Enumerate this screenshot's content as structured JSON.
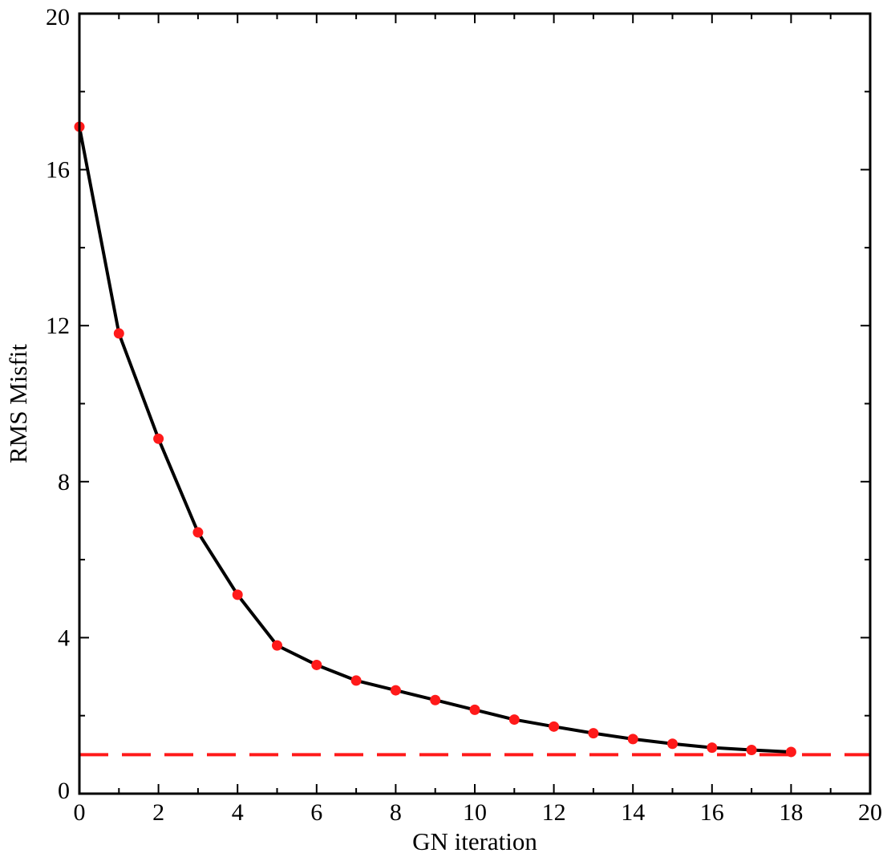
{
  "chart_data": {
    "type": "line",
    "title": "",
    "xlabel": "GN iteration",
    "ylabel": "RMS Misfit",
    "xlim": [
      0,
      20
    ],
    "ylim": [
      0,
      20
    ],
    "xticks": [
      0,
      2,
      4,
      6,
      8,
      10,
      12,
      14,
      16,
      18,
      20
    ],
    "yticks": [
      0,
      4,
      8,
      12,
      16,
      20
    ],
    "grid": false,
    "series": [
      {
        "style": "solid-line-with-markers",
        "line_color": "#000000",
        "marker_color": "#ff1a1a",
        "x": [
          0,
          1,
          2,
          3,
          4,
          5,
          6,
          7,
          8,
          9,
          10,
          11,
          12,
          13,
          14,
          15,
          16,
          17,
          18
        ],
        "y": [
          17.1,
          11.8,
          9.1,
          6.7,
          5.1,
          3.8,
          3.3,
          2.9,
          2.65,
          2.4,
          2.15,
          1.9,
          1.72,
          1.55,
          1.4,
          1.28,
          1.18,
          1.12,
          1.07
        ]
      }
    ],
    "reference_line": {
      "y": 1,
      "style": "dashed",
      "color": "#ff1a1a"
    }
  }
}
